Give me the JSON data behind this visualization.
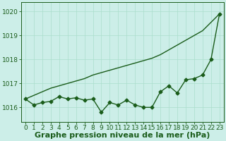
{
  "x": [
    0,
    1,
    2,
    3,
    4,
    5,
    6,
    7,
    8,
    9,
    10,
    11,
    12,
    13,
    14,
    15,
    16,
    17,
    18,
    19,
    20,
    21,
    22,
    23
  ],
  "y_jagged": [
    1016.35,
    1016.1,
    1016.2,
    1016.25,
    1016.45,
    1016.35,
    1016.4,
    1016.3,
    1016.35,
    1015.8,
    1016.2,
    1016.1,
    1016.3,
    1016.1,
    1016.0,
    1016.0,
    1016.65,
    1016.9,
    1016.6,
    1017.15,
    1017.2,
    1017.35,
    1018.0,
    1019.9
  ],
  "y_straight": [
    1016.35,
    1016.5,
    1016.65,
    1016.8,
    1016.9,
    1017.0,
    1017.1,
    1017.2,
    1017.35,
    1017.45,
    1017.55,
    1017.65,
    1017.75,
    1017.85,
    1017.95,
    1018.05,
    1018.2,
    1018.4,
    1018.6,
    1018.8,
    1019.0,
    1019.2,
    1019.55,
    1019.9
  ],
  "background_color": "#cceee8",
  "grid_color": "#aaddcc",
  "line_color": "#1a5c1a",
  "ylabel_values": [
    1016,
    1017,
    1018,
    1019,
    1020
  ],
  "ylim": [
    1015.4,
    1020.4
  ],
  "xlim": [
    -0.5,
    23.5
  ],
  "xlabel": "Graphe pression niveau de la mer (hPa)",
  "xlabel_fontsize": 8,
  "tick_fontsize": 6.5,
  "line_width": 1.0,
  "marker_size": 2.5,
  "fig_width": 3.2,
  "fig_height": 2.0,
  "dpi": 100
}
